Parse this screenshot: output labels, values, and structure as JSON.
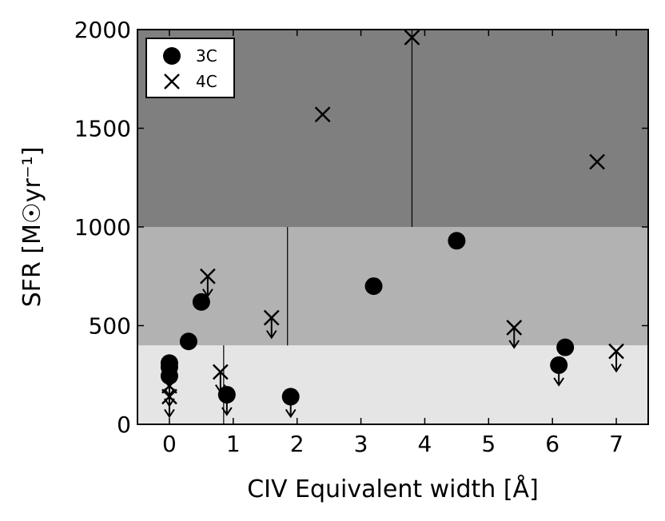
{
  "chart_data": {
    "type": "scatter",
    "xlabel": "CIV Equivalent width [Å]",
    "ylabel": "SFR [M☉yr⁻¹]",
    "xlim": [
      -0.5,
      7.5
    ],
    "ylim": [
      0,
      2000
    ],
    "x_ticks": [
      0,
      1,
      2,
      3,
      4,
      5,
      6,
      7
    ],
    "y_ticks": [
      0,
      500,
      1000,
      1500,
      2000
    ],
    "grid": false,
    "legend_position": "top-left",
    "bands": [
      {
        "y_from": 0,
        "y_to": 400,
        "color": "#e5e5e5"
      },
      {
        "y_from": 400,
        "y_to": 1000,
        "color": "#b2b2b2"
      },
      {
        "y_from": 1000,
        "y_to": 2000,
        "color": "#7f7f7f"
      }
    ],
    "dividers": [
      {
        "x": 0.85,
        "y_from": 0,
        "y_to": 400
      },
      {
        "x": 1.85,
        "y_from": 400,
        "y_to": 1000
      },
      {
        "x": 3.8,
        "y_from": 1000,
        "y_to": 2000
      }
    ],
    "series": [
      {
        "name": "3C",
        "marker": "circle",
        "points": [
          {
            "x": 0.0,
            "y": 310,
            "upper_limit": false
          },
          {
            "x": 0.0,
            "y": 290,
            "upper_limit": true
          },
          {
            "x": 0.0,
            "y": 245,
            "upper_limit": true
          },
          {
            "x": 0.3,
            "y": 420,
            "upper_limit": false
          },
          {
            "x": 0.5,
            "y": 620,
            "upper_limit": false
          },
          {
            "x": 0.9,
            "y": 150,
            "upper_limit": true
          },
          {
            "x": 1.9,
            "y": 140,
            "upper_limit": true
          },
          {
            "x": 3.2,
            "y": 700,
            "upper_limit": false
          },
          {
            "x": 4.5,
            "y": 930,
            "upper_limit": false
          },
          {
            "x": 6.1,
            "y": 300,
            "upper_limit": true
          },
          {
            "x": 6.2,
            "y": 390,
            "upper_limit": false
          }
        ]
      },
      {
        "name": "4C",
        "marker": "x",
        "points": [
          {
            "x": 0.0,
            "y": 195,
            "upper_limit": true
          },
          {
            "x": 0.0,
            "y": 140,
            "upper_limit": true
          },
          {
            "x": 0.6,
            "y": 750,
            "upper_limit": true
          },
          {
            "x": 0.8,
            "y": 265,
            "upper_limit": true
          },
          {
            "x": 1.6,
            "y": 540,
            "upper_limit": true
          },
          {
            "x": 2.4,
            "y": 1570,
            "upper_limit": false
          },
          {
            "x": 3.8,
            "y": 1960,
            "upper_limit": false
          },
          {
            "x": 5.4,
            "y": 490,
            "upper_limit": true
          },
          {
            "x": 6.7,
            "y": 1330,
            "upper_limit": false
          },
          {
            "x": 7.0,
            "y": 370,
            "upper_limit": true
          }
        ]
      }
    ]
  }
}
